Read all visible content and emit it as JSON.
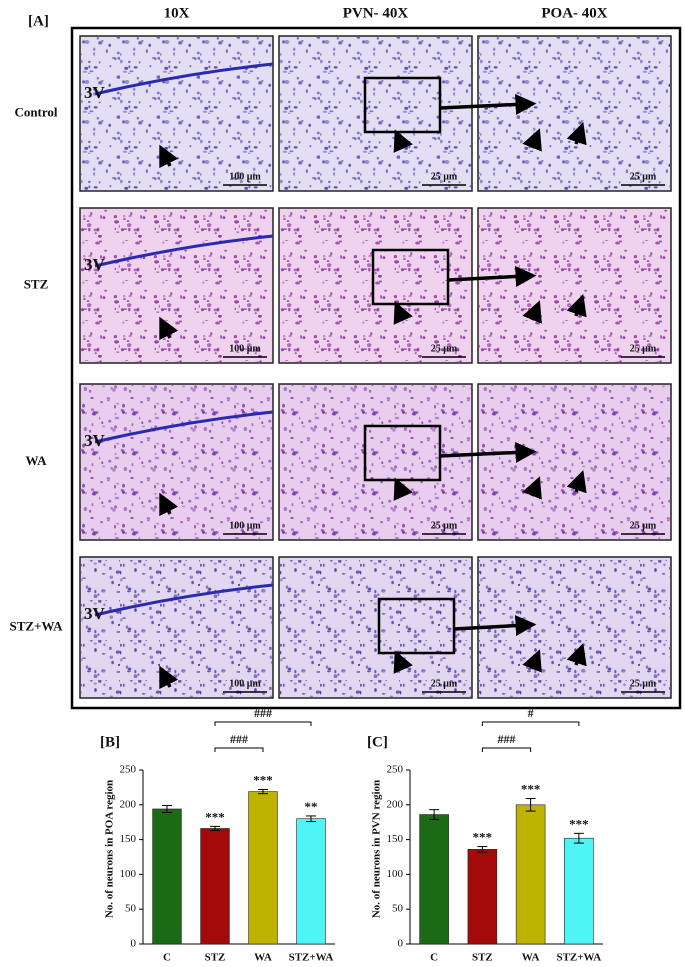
{
  "panel_a": {
    "label": "[A]",
    "columns": [
      "10X",
      "PVN- 40X",
      "POA- 40X"
    ],
    "rows": [
      "Control",
      "STZ",
      "WA",
      "STZ+WA"
    ],
    "ventricle_label": "3V",
    "scale_bars": [
      "100 μm",
      "25 μm",
      "25 μm"
    ]
  },
  "chart_data": [
    {
      "type": "bar",
      "label": "[B]",
      "y_label": "No. of neurons in POA region",
      "categories": [
        "C",
        "STZ",
        "WA",
        "STZ+WA"
      ],
      "values": [
        194,
        166,
        219,
        180
      ],
      "errors": [
        5,
        3,
        3,
        4
      ],
      "colors": [
        "#1b6a16",
        "#a30b0b",
        "#bdb300",
        "#4ff5f5"
      ],
      "significance": [
        null,
        "***",
        "***",
        "**"
      ],
      "brackets": [
        {
          "from": "STZ",
          "to": "WA",
          "label": "###"
        },
        {
          "from": "STZ",
          "to": "STZ+WA",
          "label": "###"
        }
      ],
      "ylim": [
        0,
        250
      ],
      "yticks": [
        0,
        50,
        100,
        150,
        200,
        250
      ]
    },
    {
      "type": "bar",
      "label": "[C]",
      "y_label": "No. of neurons in PVN region",
      "categories": [
        "C",
        "STZ",
        "WA",
        "STZ+WA"
      ],
      "values": [
        186,
        136,
        200,
        152
      ],
      "errors": [
        7,
        4,
        9,
        7
      ],
      "colors": [
        "#1b6a16",
        "#a30b0b",
        "#bdb300",
        "#4ff5f5"
      ],
      "significance": [
        null,
        "***",
        "***",
        "***"
      ],
      "brackets": [
        {
          "from": "STZ",
          "to": "WA",
          "label": "###"
        },
        {
          "from": "STZ",
          "to": "STZ+WA",
          "label": "#"
        }
      ],
      "ylim": [
        0,
        250
      ],
      "yticks": [
        0,
        50,
        100,
        150,
        200,
        250
      ]
    }
  ]
}
